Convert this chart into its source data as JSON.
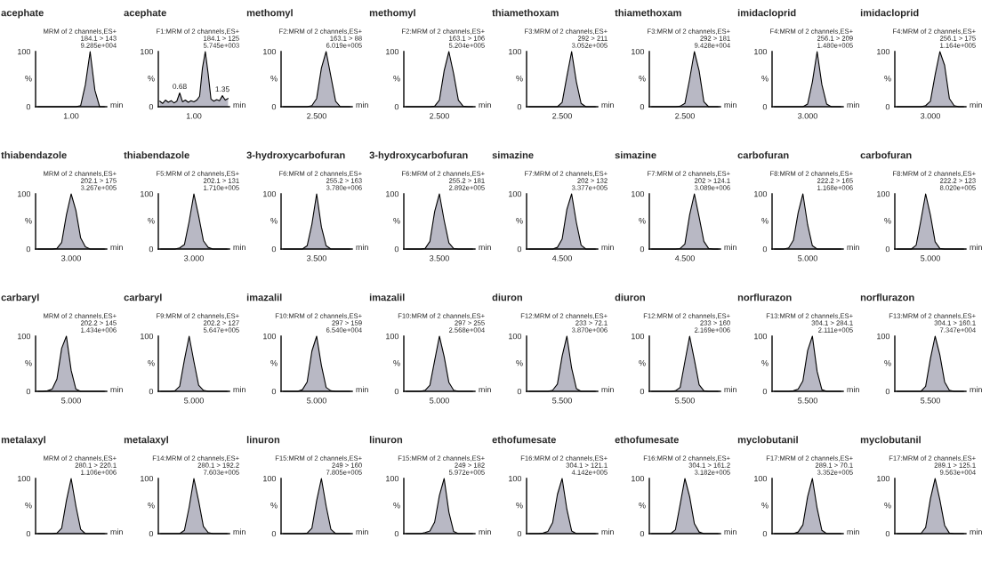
{
  "chart_data": [
    {
      "type": "area",
      "title": "acephate",
      "subtitle": "MRM of 2 channels,ES+\n184.1 > 143\n9.285e+004",
      "xlabel": "min",
      "ylabel": "%",
      "color": "#b8b8c4",
      "categories": [
        null,
        null,
        null,
        null,
        null,
        null,
        null,
        null,
        null,
        null,
        null,
        null,
        null,
        null,
        null
      ],
      "values": [
        0,
        0,
        0,
        0,
        0,
        0,
        0,
        0,
        0,
        2,
        40,
        100,
        30,
        0,
        0
      ],
      "ylim": [
        0,
        100
      ],
      "yticks": [
        0,
        100
      ],
      "annotations": [
        "1.00"
      ]
    },
    {
      "type": "area",
      "title": "acephate",
      "subtitle": "F1:MRM of 2 channels,ES+\n184.1 > 125\n5.745e+003",
      "xlabel": "min",
      "ylabel": "%",
      "color": "#b8b8c4",
      "categories": [
        null,
        null,
        null,
        null,
        null,
        null,
        null,
        null,
        null,
        null,
        null,
        null,
        null,
        null,
        null,
        null,
        null,
        null,
        null,
        null,
        null,
        null,
        null,
        null,
        null
      ],
      "values": [
        10,
        6,
        12,
        8,
        11,
        7,
        10,
        25,
        9,
        12,
        8,
        11,
        9,
        12,
        19,
        70,
        100,
        60,
        14,
        10,
        13,
        11,
        20,
        12,
        15
      ],
      "ylim": [
        0,
        100
      ],
      "yticks": [
        0,
        100
      ],
      "annotations": [
        "1.00",
        {
          "text": "0.68",
          "y": 25
        },
        {
          "text": "1.35",
          "y": 20
        }
      ]
    },
    {
      "type": "area",
      "title": "methomyl",
      "subtitle": "F2:MRM of 2 channels,ES+\n163.1 > 88\n6.019e+005",
      "xlabel": "min",
      "ylabel": "%",
      "color": "#b8b8c4",
      "categories": [
        null,
        null,
        null,
        null,
        null,
        null,
        null,
        null,
        null,
        null,
        null,
        null,
        null,
        null,
        null
      ],
      "values": [
        0,
        0,
        0,
        0,
        0,
        0,
        2,
        15,
        70,
        100,
        55,
        10,
        0,
        0,
        0
      ],
      "ylim": [
        0,
        100
      ],
      "yticks": [
        0,
        100
      ],
      "annotations": [
        "2.500"
      ]
    },
    {
      "type": "area",
      "title": "methomyl",
      "subtitle": "F2:MRM of 2 channels,ES+\n163.1 > 106\n5.204e+005",
      "xlabel": "min",
      "ylabel": "%",
      "color": "#b8b8c4",
      "categories": [
        null,
        null,
        null,
        null,
        null,
        null,
        null,
        null,
        null,
        null,
        null,
        null,
        null,
        null,
        null
      ],
      "values": [
        0,
        0,
        0,
        0,
        0,
        0,
        1,
        12,
        65,
        100,
        60,
        12,
        1,
        0,
        0
      ],
      "ylim": [
        0,
        100
      ],
      "yticks": [
        0,
        100
      ],
      "annotations": [
        "2.500"
      ]
    },
    {
      "type": "area",
      "title": "thiamethoxam",
      "subtitle": "F3:MRM of 2 channels,ES+\n292 > 211\n3.052e+005",
      "xlabel": "min",
      "ylabel": "%",
      "color": "#b8b8c4",
      "categories": [
        null,
        null,
        null,
        null,
        null,
        null,
        null,
        null,
        null,
        null,
        null,
        null,
        null,
        null,
        null
      ],
      "values": [
        0,
        0,
        0,
        0,
        0,
        0,
        0,
        8,
        55,
        100,
        45,
        6,
        0,
        0,
        0
      ],
      "ylim": [
        0,
        100
      ],
      "yticks": [
        0,
        100
      ],
      "annotations": [
        "2.500"
      ]
    },
    {
      "type": "area",
      "title": "thiamethoxam",
      "subtitle": "F3:MRM of 2 channels,ES+\n292 > 181\n9.428e+004",
      "xlabel": "min",
      "ylabel": "%",
      "color": "#b8b8c4",
      "categories": [
        null,
        null,
        null,
        null,
        null,
        null,
        null,
        null,
        null,
        null,
        null,
        null,
        null,
        null,
        null
      ],
      "values": [
        0,
        0,
        0,
        0,
        0,
        0,
        1,
        6,
        50,
        100,
        65,
        9,
        0,
        0,
        0
      ],
      "ylim": [
        0,
        100
      ],
      "yticks": [
        0,
        100
      ],
      "annotations": [
        "2.500"
      ]
    },
    {
      "type": "area",
      "title": "imidacloprid",
      "subtitle": "F4:MRM of 2 channels,ES+\n256.1 > 209\n1.480e+005",
      "xlabel": "min",
      "ylabel": "%",
      "color": "#b8b8c4",
      "categories": [
        null,
        null,
        null,
        null,
        null,
        null,
        null,
        null,
        null,
        null,
        null,
        null,
        null,
        null,
        null
      ],
      "values": [
        0,
        0,
        0,
        0,
        0,
        0,
        0,
        5,
        45,
        100,
        40,
        5,
        0,
        0,
        0
      ],
      "ylim": [
        0,
        100
      ],
      "yticks": [
        0,
        100
      ],
      "annotations": [
        "3.000"
      ]
    },
    {
      "type": "area",
      "title": "imidacloprid",
      "subtitle": "F4:MRM of 2 channels,ES+\n256.1 > 175\n1.164e+005",
      "xlabel": "min",
      "ylabel": "%",
      "color": "#b8b8c4",
      "categories": [
        null,
        null,
        null,
        null,
        null,
        null,
        null,
        null,
        null,
        null,
        null,
        null,
        null,
        null,
        null
      ],
      "values": [
        0,
        0,
        0,
        0,
        0,
        0,
        2,
        10,
        58,
        100,
        75,
        15,
        2,
        0,
        0
      ],
      "ylim": [
        0,
        100
      ],
      "yticks": [
        0,
        100
      ],
      "annotations": [
        "3.000"
      ]
    },
    {
      "type": "area",
      "title": "thiabendazole",
      "subtitle": "MRM of 2 channels,ES+\n202.1 > 175\n3.267e+005",
      "xlabel": "min",
      "ylabel": "%",
      "color": "#b8b8c4",
      "categories": [
        null,
        null,
        null,
        null,
        null,
        null,
        null,
        null,
        null,
        null,
        null,
        null,
        null,
        null,
        null
      ],
      "values": [
        0,
        0,
        0,
        0,
        1,
        12,
        62,
        100,
        70,
        20,
        4,
        0,
        0,
        0,
        0
      ],
      "ylim": [
        0,
        100
      ],
      "yticks": [
        0,
        100
      ],
      "annotations": [
        "3.000"
      ]
    },
    {
      "type": "area",
      "title": "thiabendazole",
      "subtitle": "F5:MRM of 2 channels,ES+\n202.1 > 131\n1.710e+005",
      "xlabel": "min",
      "ylabel": "%",
      "color": "#b8b8c4",
      "categories": [
        null,
        null,
        null,
        null,
        null,
        null,
        null,
        null,
        null,
        null,
        null,
        null,
        null,
        null,
        null
      ],
      "values": [
        0,
        0,
        0,
        0,
        2,
        8,
        50,
        100,
        60,
        15,
        3,
        0,
        0,
        0,
        0
      ],
      "ylim": [
        0,
        100
      ],
      "yticks": [
        0,
        100
      ],
      "annotations": [
        "3.000"
      ]
    },
    {
      "type": "area",
      "title": "3-hydroxycarbofuran",
      "subtitle": "F6:MRM of 2 channels,ES+\n255.2 > 163\n3.780e+006",
      "xlabel": "min",
      "ylabel": "%",
      "color": "#b8b8c4",
      "categories": [
        null,
        null,
        null,
        null,
        null,
        null,
        null,
        null,
        null,
        null,
        null,
        null,
        null,
        null,
        null
      ],
      "values": [
        0,
        0,
        0,
        0,
        0,
        6,
        45,
        100,
        40,
        6,
        0,
        0,
        0,
        0,
        0
      ],
      "ylim": [
        0,
        100
      ],
      "yticks": [
        0,
        100
      ],
      "annotations": [
        "3.500"
      ]
    },
    {
      "type": "area",
      "title": "3-hydroxycarbofuran",
      "subtitle": "F6:MRM of 2 channels,ES+\n255.2 > 181\n2.892e+005",
      "xlabel": "min",
      "ylabel": "%",
      "color": "#b8b8c4",
      "categories": [
        null,
        null,
        null,
        null,
        null,
        null,
        null,
        null,
        null,
        null,
        null,
        null,
        null,
        null,
        null
      ],
      "values": [
        0,
        0,
        0,
        0,
        1,
        14,
        68,
        100,
        52,
        11,
        1,
        0,
        0,
        0,
        0
      ],
      "ylim": [
        0,
        100
      ],
      "yticks": [
        0,
        100
      ],
      "annotations": [
        "3.500"
      ]
    },
    {
      "type": "area",
      "title": "simazine",
      "subtitle": "F7:MRM of 2 channels,ES+\n202 > 132\n3.377e+005",
      "xlabel": "min",
      "ylabel": "%",
      "color": "#b8b8c4",
      "categories": [
        null,
        null,
        null,
        null,
        null,
        null,
        null,
        null,
        null,
        null,
        null,
        null,
        null,
        null,
        null
      ],
      "values": [
        0,
        0,
        0,
        0,
        0,
        0,
        3,
        18,
        72,
        100,
        48,
        7,
        0,
        0,
        0
      ],
      "ylim": [
        0,
        100
      ],
      "yticks": [
        0,
        100
      ],
      "annotations": [
        "4.500"
      ]
    },
    {
      "type": "area",
      "title": "simazine",
      "subtitle": "F7:MRM of 2 channels,ES+\n202 > 124.1\n3.089e+006",
      "xlabel": "min",
      "ylabel": "%",
      "color": "#b8b8c4",
      "categories": [
        null,
        null,
        null,
        null,
        null,
        null,
        null,
        null,
        null,
        null,
        null,
        null,
        null,
        null,
        null
      ],
      "values": [
        0,
        0,
        0,
        0,
        0,
        0,
        1,
        9,
        62,
        100,
        58,
        14,
        1,
        0,
        0
      ],
      "ylim": [
        0,
        100
      ],
      "yticks": [
        0,
        100
      ],
      "annotations": [
        "4.500"
      ]
    },
    {
      "type": "area",
      "title": "carbofuran",
      "subtitle": "F8:MRM of 2 channels,ES+\n222.2 > 165\n1.168e+006",
      "xlabel": "min",
      "ylabel": "%",
      "color": "#b8b8c4",
      "categories": [
        null,
        null,
        null,
        null,
        null,
        null,
        null,
        null,
        null,
        null,
        null,
        null,
        null,
        null,
        null
      ],
      "values": [
        0,
        0,
        0,
        2,
        16,
        66,
        100,
        44,
        6,
        0,
        0,
        0,
        0,
        0,
        0
      ],
      "ylim": [
        0,
        100
      ],
      "yticks": [
        0,
        100
      ],
      "annotations": [
        "5.000"
      ]
    },
    {
      "type": "area",
      "title": "carbofuran",
      "subtitle": "F8:MRM of 2 channels,ES+\n222.2 > 123\n8.020e+005",
      "xlabel": "min",
      "ylabel": "%",
      "color": "#b8b8c4",
      "categories": [
        null,
        null,
        null,
        null,
        null,
        null,
        null,
        null,
        null,
        null,
        null,
        null,
        null,
        null,
        null
      ],
      "values": [
        0,
        0,
        0,
        0,
        7,
        52,
        100,
        62,
        13,
        1,
        0,
        0,
        0,
        0,
        0
      ],
      "ylim": [
        0,
        100
      ],
      "yticks": [
        0,
        100
      ],
      "annotations": [
        "5.000"
      ]
    },
    {
      "type": "area",
      "title": "carbaryl",
      "subtitle": "MRM of 2 channels,ES+\n202.2 > 145\n1.434e+006",
      "xlabel": "min",
      "ylabel": "%",
      "color": "#b8b8c4",
      "categories": [
        null,
        null,
        null,
        null,
        null,
        null,
        null,
        null,
        null,
        null,
        null,
        null,
        null,
        null,
        null
      ],
      "values": [
        0,
        0,
        1,
        4,
        22,
        78,
        100,
        38,
        4,
        0,
        0,
        0,
        0,
        0,
        0
      ],
      "ylim": [
        0,
        100
      ],
      "yticks": [
        0,
        100
      ],
      "annotations": [
        "5.000"
      ]
    },
    {
      "type": "area",
      "title": "carbaryl",
      "subtitle": "F9:MRM of 2 channels,ES+\n202.2 > 127\n5.647e+005",
      "xlabel": "min",
      "ylabel": "%",
      "color": "#b8b8c4",
      "categories": [
        null,
        null,
        null,
        null,
        null,
        null,
        null,
        null,
        null,
        null,
        null,
        null,
        null,
        null,
        null
      ],
      "values": [
        0,
        0,
        0,
        1,
        9,
        57,
        100,
        54,
        11,
        2,
        0,
        0,
        0,
        0,
        0
      ],
      "ylim": [
        0,
        100
      ],
      "yticks": [
        0,
        100
      ],
      "annotations": [
        "5.000"
      ]
    },
    {
      "type": "area",
      "title": "imazalil",
      "subtitle": "F10:MRM of 2 channels,ES+\n297 > 159\n6.540e+004",
      "xlabel": "min",
      "ylabel": "%",
      "color": "#b8b8c4",
      "categories": [
        null,
        null,
        null,
        null,
        null,
        null,
        null,
        null,
        null,
        null,
        null,
        null,
        null,
        null,
        null
      ],
      "values": [
        0,
        0,
        0,
        0,
        3,
        17,
        73,
        100,
        47,
        7,
        1,
        0,
        0,
        0,
        0
      ],
      "ylim": [
        0,
        100
      ],
      "yticks": [
        0,
        100
      ],
      "annotations": [
        "5.000"
      ]
    },
    {
      "type": "area",
      "title": "imazalil",
      "subtitle": "F10:MRM of 2 channels,ES+\n297 > 255\n2.568e+004",
      "xlabel": "min",
      "ylabel": "%",
      "color": "#b8b8c4",
      "categories": [
        null,
        null,
        null,
        null,
        null,
        null,
        null,
        null,
        null,
        null,
        null,
        null,
        null,
        null,
        null
      ],
      "values": [
        0,
        0,
        0,
        0,
        2,
        11,
        56,
        100,
        63,
        16,
        2,
        0,
        0,
        0,
        0
      ],
      "ylim": [
        0,
        100
      ],
      "yticks": [
        0,
        100
      ],
      "annotations": [
        "5.000"
      ]
    },
    {
      "type": "area",
      "title": "diuron",
      "subtitle": "F12:MRM of 2 channels,ES+\n233 > 72.1\n3.870e+006",
      "xlabel": "min",
      "ylabel": "%",
      "color": "#b8b8c4",
      "categories": [
        null,
        null,
        null,
        null,
        null,
        null,
        null,
        null,
        null,
        null,
        null,
        null,
        null,
        null,
        null
      ],
      "values": [
        0,
        0,
        0,
        0,
        0,
        2,
        13,
        64,
        100,
        42,
        5,
        0,
        0,
        0,
        0
      ],
      "ylim": [
        0,
        100
      ],
      "yticks": [
        0,
        100
      ],
      "annotations": [
        "5.500"
      ]
    },
    {
      "type": "area",
      "title": "diuron",
      "subtitle": "F12:MRM of 2 channels,ES+\n233 > 160\n2.169e+006",
      "xlabel": "min",
      "ylabel": "%",
      "color": "#b8b8c4",
      "categories": [
        null,
        null,
        null,
        null,
        null,
        null,
        null,
        null,
        null,
        null,
        null,
        null,
        null,
        null,
        null
      ],
      "values": [
        0,
        0,
        0,
        0,
        0,
        1,
        7,
        54,
        100,
        57,
        12,
        1,
        0,
        0,
        0
      ],
      "ylim": [
        0,
        100
      ],
      "yticks": [
        0,
        100
      ],
      "annotations": [
        "5.500"
      ]
    },
    {
      "type": "area",
      "title": "norflurazon",
      "subtitle": "F13:MRM of 2 channels,ES+\n304.1 > 284.1\n2.111e+005",
      "xlabel": "min",
      "ylabel": "%",
      "color": "#b8b8c4",
      "categories": [
        null,
        null,
        null,
        null,
        null,
        null,
        null,
        null,
        null,
        null,
        null,
        null,
        null,
        null,
        null
      ],
      "values": [
        0,
        0,
        0,
        0,
        1,
        4,
        19,
        74,
        100,
        36,
        3,
        0,
        0,
        0,
        0
      ],
      "ylim": [
        0,
        100
      ],
      "yticks": [
        0,
        100
      ],
      "annotations": [
        "5.500"
      ]
    },
    {
      "type": "area",
      "title": "norflurazon",
      "subtitle": "F13:MRM of 2 channels,ES+\n304.1 > 160.1\n7.347e+004",
      "xlabel": "min",
      "ylabel": "%",
      "color": "#b8b8c4",
      "categories": [
        null,
        null,
        null,
        null,
        null,
        null,
        null,
        null,
        null,
        null,
        null,
        null,
        null,
        null,
        null
      ],
      "values": [
        0,
        0,
        0,
        0,
        0,
        0,
        9,
        59,
        100,
        66,
        17,
        2,
        0,
        0,
        0
      ],
      "ylim": [
        0,
        100
      ],
      "yticks": [
        0,
        100
      ],
      "annotations": [
        "5.500"
      ]
    },
    {
      "type": "area",
      "title": "metalaxyl",
      "subtitle": "MRM of 2 channels,ES+\n280.1 > 220.1\n1.106e+006",
      "xlabel": "min",
      "ylabel": "%",
      "color": "#b8b8c4",
      "categories": [
        null,
        null,
        null,
        null,
        null,
        null,
        null,
        null,
        null,
        null,
        null,
        null,
        null,
        null,
        null
      ],
      "values": [
        0,
        0,
        0,
        0,
        1,
        10,
        60,
        100,
        50,
        8,
        0,
        0,
        0,
        0,
        0
      ],
      "ylim": [
        0,
        100
      ],
      "yticks": [
        0,
        100
      ]
    },
    {
      "type": "area",
      "title": "metalaxyl",
      "subtitle": "F14:MRM of 2 channels,ES+\n280.1 > 192.2\n7.603e+005",
      "xlabel": "min",
      "ylabel": "%",
      "color": "#b8b8c4",
      "categories": [
        null,
        null,
        null,
        null,
        null,
        null,
        null,
        null,
        null,
        null,
        null,
        null,
        null,
        null,
        null
      ],
      "values": [
        0,
        0,
        0,
        0,
        0,
        6,
        48,
        100,
        59,
        13,
        2,
        0,
        0,
        0,
        0
      ],
      "ylim": [
        0,
        100
      ],
      "yticks": [
        0,
        100
      ]
    },
    {
      "type": "area",
      "title": "linuron",
      "subtitle": "F15:MRM of 2 channels,ES+\n249 > 160\n7.805e+005",
      "xlabel": "min",
      "ylabel": "%",
      "color": "#b8b8c4",
      "categories": [
        null,
        null,
        null,
        null,
        null,
        null,
        null,
        null,
        null,
        null,
        null,
        null,
        null,
        null,
        null
      ],
      "values": [
        0,
        0,
        0,
        0,
        0,
        1,
        10,
        60,
        100,
        50,
        8,
        0,
        0,
        0,
        0
      ],
      "ylim": [
        0,
        100
      ],
      "yticks": [
        0,
        100
      ]
    },
    {
      "type": "area",
      "title": "linuron",
      "subtitle": "F15:MRM of 2 channels,ES+\n249 > 182\n5.972e+005",
      "xlabel": "min",
      "ylabel": "%",
      "color": "#b8b8c4",
      "categories": [
        null,
        null,
        null,
        null,
        null,
        null,
        null,
        null,
        null,
        null,
        null,
        null,
        null,
        null,
        null
      ],
      "values": [
        0,
        0,
        0,
        0,
        2,
        5,
        21,
        69,
        100,
        39,
        4,
        0,
        0,
        0,
        0
      ],
      "ylim": [
        0,
        100
      ],
      "yticks": [
        0,
        100
      ]
    },
    {
      "type": "area",
      "title": "ethofumesate",
      "subtitle": "F16:MRM of 2 channels,ES+\n304.1 > 121.1\n4.142e+005",
      "xlabel": "min",
      "ylabel": "%",
      "color": "#b8b8c4",
      "categories": [
        null,
        null,
        null,
        null,
        null,
        null,
        null,
        null,
        null,
        null,
        null,
        null,
        null,
        null,
        null
      ],
      "values": [
        0,
        0,
        0,
        1,
        4,
        20,
        71,
        100,
        44,
        5,
        0,
        0,
        0,
        0,
        0
      ],
      "ylim": [
        0,
        100
      ],
      "yticks": [
        0,
        100
      ]
    },
    {
      "type": "area",
      "title": "ethofumesate",
      "subtitle": "F16:MRM of 2 channels,ES+\n304.1 > 161.2\n3.182e+005",
      "xlabel": "min",
      "ylabel": "%",
      "color": "#b8b8c4",
      "categories": [
        null,
        null,
        null,
        null,
        null,
        null,
        null,
        null,
        null,
        null,
        null,
        null,
        null,
        null,
        null
      ],
      "values": [
        0,
        0,
        0,
        0,
        0,
        7,
        53,
        100,
        67,
        18,
        3,
        0,
        0,
        0,
        0
      ],
      "ylim": [
        0,
        100
      ],
      "yticks": [
        0,
        100
      ]
    },
    {
      "type": "area",
      "title": "myclobutanil",
      "subtitle": "F17:MRM of 2 channels,ES+\n289.1 > 70.1\n3.352e+005",
      "xlabel": "min",
      "ylabel": "%",
      "color": "#b8b8c4",
      "categories": [
        null,
        null,
        null,
        null,
        null,
        null,
        null,
        null,
        null,
        null,
        null,
        null,
        null,
        null,
        null
      ],
      "values": [
        0,
        0,
        0,
        0,
        0,
        3,
        16,
        67,
        100,
        46,
        6,
        0,
        0,
        0,
        0
      ],
      "ylim": [
        0,
        100
      ],
      "yticks": [
        0,
        100
      ]
    },
    {
      "type": "area",
      "title": "myclobutanil",
      "subtitle": "F17:MRM of 2 channels,ES+\n289.1 > 125.1\n9.563e+004",
      "xlabel": "min",
      "ylabel": "%",
      "color": "#b8b8c4",
      "categories": [
        null,
        null,
        null,
        null,
        null,
        null,
        null,
        null,
        null,
        null,
        null,
        null,
        null,
        null,
        null
      ],
      "values": [
        0,
        0,
        0,
        0,
        0,
        0,
        11,
        63,
        100,
        61,
        15,
        1,
        0,
        0,
        0
      ],
      "ylim": [
        0,
        100
      ],
      "yticks": [
        0,
        100
      ]
    }
  ]
}
